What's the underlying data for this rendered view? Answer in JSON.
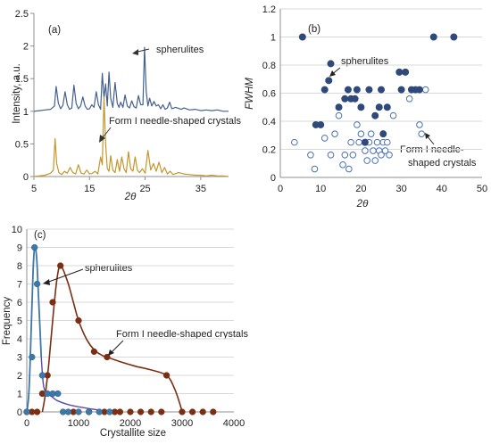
{
  "colors": {
    "spherulites_pattern": "#44608f",
    "needle_pattern": "#c4962b",
    "dark_blue_marker": "#2f4a7a",
    "open_marker_edge": "#4a72b0",
    "freq_blue_line": "#3d78a8",
    "freq_blue_line2": "#5a4aa8",
    "freq_brown": "#7b2e12"
  },
  "chart_data": [
    {
      "type": "line",
      "panel_label": "(a)",
      "xlabel": "2θ",
      "ylabel": "Intensity, a.u.",
      "xlim": [
        5,
        40
      ],
      "ylim": [
        0,
        2.5
      ],
      "xticks": [
        5,
        15,
        25,
        35
      ],
      "yticks": [
        0,
        0.5,
        1,
        1.5,
        2,
        2.5
      ],
      "series": [
        {
          "name": "spherulites",
          "baseline": 1.0,
          "x": [
            5,
            6,
            7,
            8,
            8.7,
            9,
            9.4,
            9.8,
            10.2,
            10.6,
            11,
            11.4,
            11.8,
            12.2,
            12.6,
            13,
            13.4,
            13.8,
            14.2,
            14.6,
            15,
            15.4,
            15.8,
            16.2,
            16.6,
            17,
            17.3,
            17.6,
            17.9,
            18.2,
            18.5,
            18.8,
            19.2,
            19.6,
            20,
            20.3,
            20.6,
            21,
            21.4,
            21.8,
            22.2,
            22.6,
            23,
            23.4,
            23.8,
            24.2,
            24.6,
            24.9,
            25.2,
            25.5,
            25.8,
            26.2,
            26.6,
            27,
            27.4,
            27.8,
            28.2,
            28.6,
            29,
            29.4,
            29.8,
            30.5,
            31.5,
            32,
            33,
            34,
            35,
            36,
            37,
            38,
            39,
            40
          ],
          "y": [
            1.0,
            1.01,
            1.02,
            1.03,
            1.08,
            1.38,
            1.12,
            1.04,
            1.09,
            1.3,
            1.1,
            1.03,
            1.05,
            1.4,
            1.12,
            1.04,
            1.08,
            1.22,
            1.08,
            1.03,
            1.04,
            1.1,
            1.06,
            1.3,
            1.1,
            1.03,
            1.58,
            1.2,
            1.42,
            1.08,
            1.6,
            1.2,
            1.06,
            1.44,
            1.12,
            1.06,
            1.14,
            1.06,
            1.25,
            1.08,
            1.05,
            1.16,
            1.07,
            1.05,
            1.24,
            1.1,
            1.1,
            1.98,
            1.3,
            1.08,
            1.2,
            1.08,
            1.15,
            1.08,
            1.1,
            1.04,
            1.1,
            1.03,
            1.05,
            1.14,
            1.04,
            1.06,
            1.03,
            1.05,
            1.02,
            1.03,
            1.01,
            1.02,
            1.01,
            1.02,
            1.0,
            1.0
          ]
        },
        {
          "name": "Form I needle-shaped crystals",
          "baseline": 0.0,
          "x": [
            5,
            6,
            7,
            8,
            8.5,
            8.8,
            9.1,
            9.5,
            10,
            10.5,
            11,
            11.5,
            12,
            12.5,
            13,
            13.5,
            14,
            14.5,
            15,
            15.5,
            16,
            16.5,
            17,
            17.3,
            17.6,
            17.9,
            18.2,
            18.5,
            18.8,
            19.2,
            19.6,
            20,
            20.4,
            20.8,
            21.2,
            21.6,
            22,
            22.4,
            22.8,
            23.2,
            23.6,
            24,
            24.5,
            25,
            25.5,
            26,
            26.5,
            27,
            27.5,
            28,
            28.5,
            29,
            29.5,
            30,
            31,
            32,
            33,
            34,
            35,
            36,
            37,
            38,
            39,
            40
          ],
          "y": [
            0.0,
            0.01,
            0.02,
            0.05,
            0.1,
            0.58,
            0.2,
            0.06,
            0.03,
            0.08,
            0.05,
            0.14,
            0.06,
            0.04,
            0.18,
            0.05,
            0.04,
            0.1,
            0.04,
            0.05,
            0.08,
            0.04,
            0.3,
            0.18,
            1.22,
            0.5,
            0.12,
            0.08,
            0.32,
            0.1,
            0.06,
            0.26,
            0.08,
            0.3,
            0.12,
            0.06,
            0.38,
            0.12,
            0.08,
            0.3,
            0.1,
            0.06,
            0.12,
            0.05,
            0.4,
            0.1,
            0.2,
            0.08,
            0.22,
            0.06,
            0.14,
            0.04,
            0.08,
            0.03,
            0.06,
            0.04,
            0.03,
            0.02,
            0.02,
            0.01,
            0.02,
            0.01,
            0.01,
            0.0
          ]
        }
      ],
      "annotations": [
        "spherulites",
        "Form I needle-shaped crystals"
      ]
    },
    {
      "type": "scatter",
      "panel_label": "(b)",
      "xlabel": "2θ",
      "ylabel": "FWHM",
      "xlim": [
        0,
        50
      ],
      "ylim": [
        0,
        1.2
      ],
      "xticks": [
        0,
        10,
        20,
        30,
        40,
        50
      ],
      "yticks": [
        0,
        0.2,
        0.4,
        0.6,
        0.8,
        1,
        1.2
      ],
      "grid": true,
      "series": [
        {
          "name": "spherulites",
          "marker": "filled",
          "points": [
            [
              5.5,
              1.0
            ],
            [
              8.8,
              0.375
            ],
            [
              10,
              0.375
            ],
            [
              11,
              0.625
            ],
            [
              12,
              0.69
            ],
            [
              12.5,
              0.81
            ],
            [
              14.5,
              0.5
            ],
            [
              16,
              0.56
            ],
            [
              16.8,
              0.625
            ],
            [
              17.5,
              0.56
            ],
            [
              18.5,
              0.56
            ],
            [
              19,
              0.625
            ],
            [
              20,
              0.5
            ],
            [
              21,
              0.25
            ],
            [
              22,
              0.625
            ],
            [
              23.5,
              0.44
            ],
            [
              24.5,
              0.5
            ],
            [
              25,
              0.625
            ],
            [
              25.5,
              0.31
            ],
            [
              26.5,
              0.5
            ],
            [
              29.5,
              0.75
            ],
            [
              30,
              0.625
            ],
            [
              31,
              0.75
            ],
            [
              32.5,
              0.625
            ],
            [
              33.5,
              0.625
            ],
            [
              34.5,
              0.625
            ],
            [
              38,
              1.0
            ],
            [
              43,
              1.0
            ]
          ]
        },
        {
          "name": "Form I needle-shaped crystals",
          "marker": "open",
          "points": [
            [
              3.5,
              0.25
            ],
            [
              7.5,
              0.16
            ],
            [
              8.5,
              0.06
            ],
            [
              11,
              0.28
            ],
            [
              12.5,
              0.16
            ],
            [
              13.5,
              0.31
            ],
            [
              14.5,
              0.44
            ],
            [
              15.5,
              0.09
            ],
            [
              16,
              0.16
            ],
            [
              17,
              0.06
            ],
            [
              17.5,
              0.25
            ],
            [
              18,
              0.16
            ],
            [
              19,
              0.375
            ],
            [
              19.5,
              0.25
            ],
            [
              20,
              0.31
            ],
            [
              21,
              0.19
            ],
            [
              21.5,
              0.12
            ],
            [
              22,
              0.25
            ],
            [
              22.5,
              0.31
            ],
            [
              23,
              0.19
            ],
            [
              23.5,
              0.12
            ],
            [
              24,
              0.25
            ],
            [
              24.5,
              0.19
            ],
            [
              25,
              0.16
            ],
            [
              25.5,
              0.25
            ],
            [
              26,
              0.19
            ],
            [
              26.5,
              0.25
            ],
            [
              27,
              0.16
            ],
            [
              28,
              0.44
            ],
            [
              30,
              0.625
            ],
            [
              32,
              0.56
            ],
            [
              34.5,
              0.375
            ],
            [
              35,
              0.31
            ],
            [
              36,
              0.625
            ]
          ]
        }
      ],
      "annotations": [
        "spherulites",
        "Form I needle-",
        "shaped crystals"
      ]
    },
    {
      "type": "line",
      "panel_label": "(c)",
      "xlabel": "Crystallite size",
      "ylabel": "Frequency",
      "xlim": [
        0,
        4000
      ],
      "ylim": [
        0,
        10
      ],
      "xticks": [
        0,
        1000,
        2000,
        3000,
        4000
      ],
      "yticks": [
        0,
        1,
        2,
        3,
        4,
        5,
        6,
        7,
        8,
        9,
        10
      ],
      "grid": true,
      "series": [
        {
          "name": "spherulites",
          "points": [
            [
              0,
              0
            ],
            [
              100,
              3
            ],
            [
              150,
              9
            ],
            [
              200,
              7
            ],
            [
              300,
              2
            ],
            [
              400,
              1
            ],
            [
              500,
              1
            ],
            [
              600,
              1
            ],
            [
              700,
              0
            ],
            [
              800,
              0
            ],
            [
              1000,
              0
            ],
            [
              1200,
              0
            ],
            [
              1400,
              0
            ],
            [
              1600,
              0
            ]
          ],
          "curve": [
            [
              0,
              0
            ],
            [
              40,
              1
            ],
            [
              80,
              4
            ],
            [
              120,
              7.6
            ],
            [
              150,
              9
            ],
            [
              175,
              8.9
            ],
            [
              200,
              8
            ],
            [
              240,
              5.5
            ],
            [
              280,
              3
            ],
            [
              320,
              1.5
            ],
            [
              380,
              1
            ],
            [
              450,
              0.9
            ],
            [
              520,
              0.75
            ],
            [
              600,
              0.6
            ],
            [
              800,
              0.4
            ],
            [
              1000,
              0.28
            ],
            [
              1200,
              0.18
            ],
            [
              1400,
              0.1
            ],
            [
              1600,
              0.05
            ],
            [
              1700,
              0.03
            ]
          ]
        },
        {
          "name": "Form I needle-shaped crystals",
          "points": [
            [
              0,
              0
            ],
            [
              100,
              0
            ],
            [
              200,
              0
            ],
            [
              300,
              1
            ],
            [
              400,
              2
            ],
            [
              500,
              6
            ],
            [
              650,
              8
            ],
            [
              1000,
              5
            ],
            [
              1300,
              3.3
            ],
            [
              1550,
              3
            ],
            [
              2700,
              2
            ],
            [
              3000,
              0
            ],
            [
              3200,
              0
            ],
            [
              3400,
              0
            ],
            [
              3600,
              0
            ],
            [
              2000,
              0
            ],
            [
              2200,
              0
            ],
            [
              2400,
              0
            ],
            [
              2600,
              0
            ],
            [
              1800,
              0
            ],
            [
              1700,
              0
            ],
            [
              1500,
              0
            ],
            [
              1200,
              0
            ],
            [
              900,
              0
            ]
          ],
          "curve": [
            [
              300,
              0
            ],
            [
              350,
              0.8
            ],
            [
              420,
              2.5
            ],
            [
              500,
              5
            ],
            [
              580,
              7.2
            ],
            [
              650,
              8
            ],
            [
              780,
              7.2
            ],
            [
              900,
              6
            ],
            [
              1000,
              5
            ],
            [
              1150,
              4
            ],
            [
              1300,
              3.4
            ],
            [
              1450,
              3.1
            ],
            [
              1550,
              3.0
            ],
            [
              1800,
              2.75
            ],
            [
              2100,
              2.5
            ],
            [
              2400,
              2.3
            ],
            [
              2700,
              2
            ],
            [
              2850,
              1.3
            ],
            [
              2950,
              0.5
            ],
            [
              3000,
              0
            ]
          ]
        }
      ],
      "annotations": [
        "spherulites",
        "Form I needle-shaped crystals"
      ]
    }
  ]
}
